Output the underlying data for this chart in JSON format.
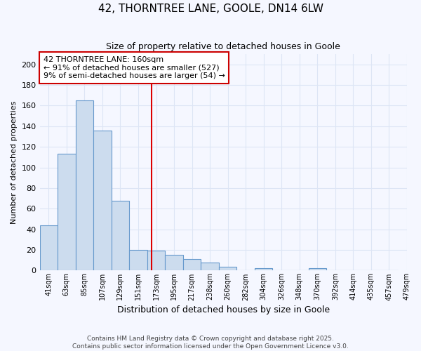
{
  "title": "42, THORNTREE LANE, GOOLE, DN14 6LW",
  "subtitle": "Size of property relative to detached houses in Goole",
  "xlabel": "Distribution of detached houses by size in Goole",
  "ylabel": "Number of detached properties",
  "bar_values": [
    44,
    113,
    165,
    136,
    68,
    20,
    19,
    15,
    11,
    8,
    4,
    0,
    2,
    0,
    0,
    2,
    0,
    0,
    0,
    0
  ],
  "categories": [
    "41sqm",
    "63sqm",
    "85sqm",
    "107sqm",
    "129sqm",
    "151sqm",
    "173sqm",
    "195sqm",
    "217sqm",
    "238sqm",
    "260sqm",
    "282sqm",
    "304sqm",
    "326sqm",
    "348sqm",
    "370sqm",
    "392sqm",
    "414sqm",
    "435sqm",
    "457sqm",
    "479sqm"
  ],
  "bar_color": "#ccdcee",
  "bar_edge_color": "#6699cc",
  "background_color": "#f5f7ff",
  "grid_color": "#dde5f5",
  "vline_x": 5.75,
  "vline_color": "#dd0000",
  "annotation_title": "42 THORNTREE LANE: 160sqm",
  "annotation_line1": "← 91% of detached houses are smaller (527)",
  "annotation_line2": "9% of semi-detached houses are larger (54) →",
  "annotation_box_facecolor": "#ffffff",
  "annotation_box_edgecolor": "#cc0000",
  "ylim": [
    0,
    210
  ],
  "yticks": [
    0,
    20,
    40,
    60,
    80,
    100,
    120,
    140,
    160,
    180,
    200
  ],
  "footer1": "Contains HM Land Registry data © Crown copyright and database right 2025.",
  "footer2": "Contains public sector information licensed under the Open Government Licence v3.0."
}
